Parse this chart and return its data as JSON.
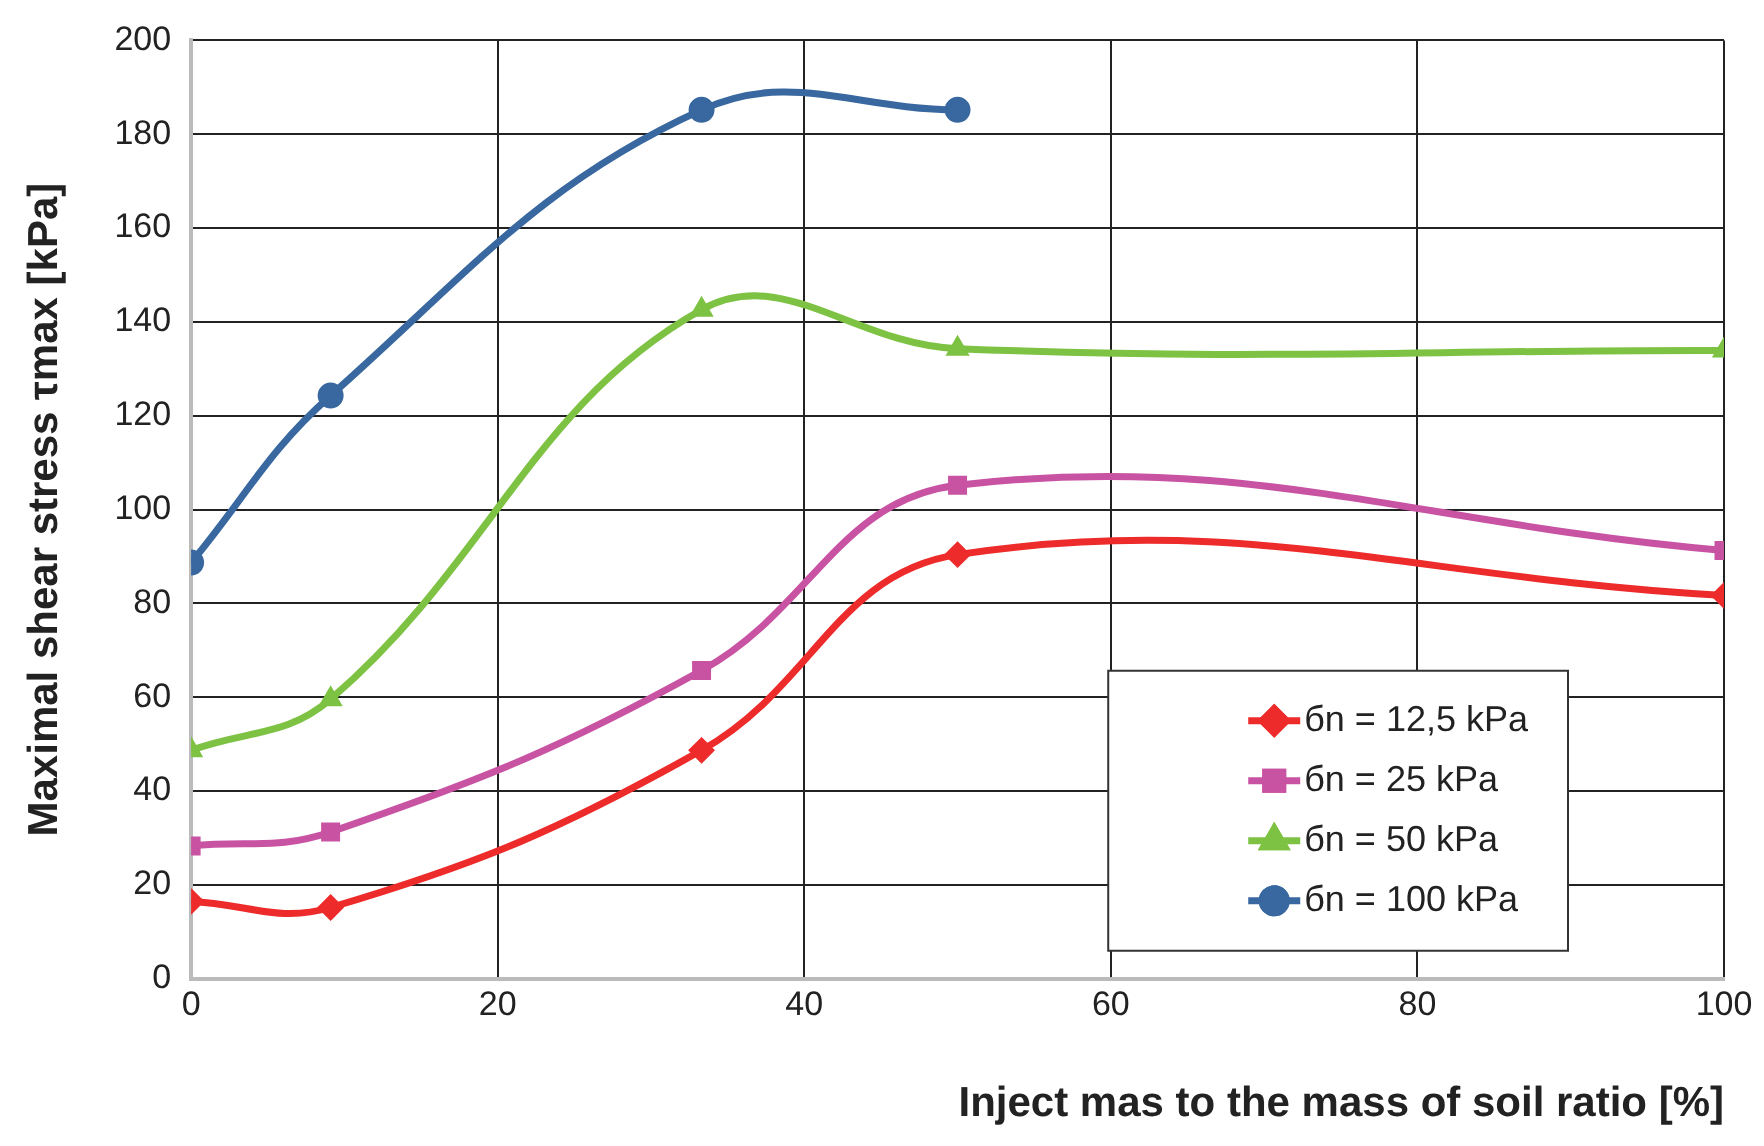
{
  "chart_data": {
    "type": "line",
    "xlabel": "Inject mas to the mass of soil ratio [%]",
    "ylabel": "Maximal shear stress τmax [kPa]",
    "xlim": [
      0,
      100
    ],
    "xticks": [
      0,
      20,
      40,
      60,
      80,
      100
    ],
    "ylim": [
      0,
      200
    ],
    "yticks": [
      0,
      20,
      40,
      60,
      80,
      100,
      120,
      140,
      160,
      180,
      200
    ],
    "grid": true,
    "legend": "bottom right",
    "line_style": "solid",
    "series": [
      {
        "name": "бn = 12,5 kPa",
        "color": "#ee2b2b",
        "marker": "diamond",
        "x": [
          0,
          9.1,
          33.3,
          50,
          100
        ],
        "values": [
          16.5,
          15.2,
          48.7,
          90.4,
          81.7
        ]
      },
      {
        "name": "бn = 25 kPa",
        "color": "#c953a3",
        "marker": "square",
        "x": [
          0,
          9.1,
          33.3,
          50,
          100
        ],
        "values": [
          28.3,
          31.3,
          65.7,
          105.2,
          91.3
        ]
      },
      {
        "name": "бn = 50 kPa",
        "color": "#7dc242",
        "marker": "triangle",
        "x": [
          0,
          9.1,
          33.3,
          50,
          100
        ],
        "values": [
          48.7,
          59.6,
          142.6,
          134.3,
          133.9
        ]
      },
      {
        "name": "бn = 100 kPa",
        "color": "#38689f",
        "marker": "circle",
        "x": [
          0,
          9.1,
          33.3,
          50
        ],
        "values": [
          88.7,
          124.3,
          185.2,
          185.2
        ]
      }
    ]
  }
}
